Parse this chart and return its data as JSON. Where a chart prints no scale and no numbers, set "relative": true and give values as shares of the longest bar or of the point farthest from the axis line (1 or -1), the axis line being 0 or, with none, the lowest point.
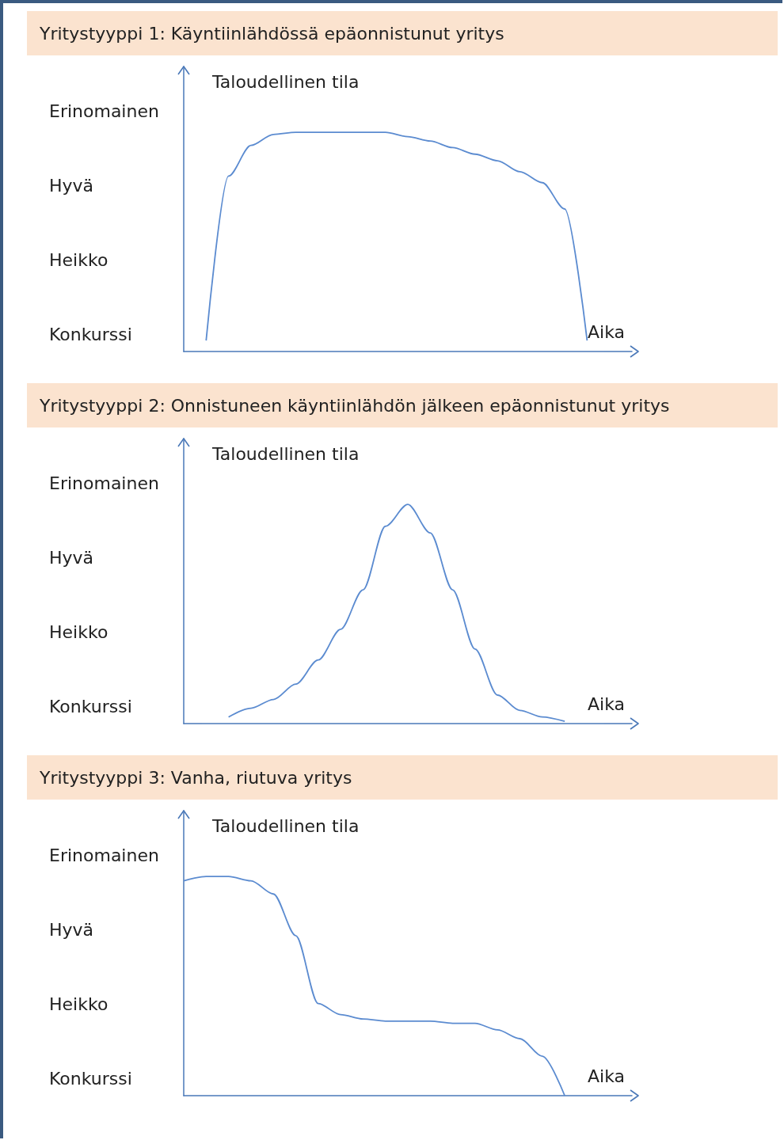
{
  "chart_data": [
    {
      "type": "line",
      "title": "Yritystyyppi 1: Käyntiinlähdössä epäonnistunut yritys",
      "xlabel": "Aika",
      "ylabel": "Taloudellinen tila",
      "color": "#5b8bd0",
      "marker": "none",
      "relative": true,
      "categories": [
        null,
        null,
        null,
        null,
        null,
        null,
        null,
        null,
        null,
        null,
        null,
        null,
        null,
        null,
        null,
        null,
        null,
        null,
        null,
        null,
        null
      ],
      "values": [
        null,
        0.05,
        0.8,
        0.94,
        0.99,
        1,
        1,
        1,
        1,
        1,
        0.98,
        0.96,
        0.93,
        0.9,
        0.87,
        0.82,
        0.77,
        0.65,
        0.05,
        null,
        null
      ],
      "annotations": [
        "Konkurssi",
        "Heikko",
        "Hyvä",
        "Erinomainen"
      ]
    },
    {
      "type": "line",
      "title": "Yritystyyppi  2: Onnistuneen käyntiinlähdön jälkeen epäonnistunut yritys",
      "xlabel": "Aika",
      "ylabel": "Taloudellinen tila",
      "color": "#5b8bd0",
      "marker": "none",
      "relative": true,
      "categories": [
        null,
        null,
        null,
        null,
        null,
        null,
        null,
        null,
        null,
        null,
        null,
        null,
        null,
        null,
        null,
        null,
        null,
        null,
        null,
        null,
        null
      ],
      "values": [
        null,
        null,
        0.03,
        0.07,
        0.11,
        0.18,
        0.29,
        0.43,
        0.61,
        0.9,
        1,
        0.87,
        0.61,
        0.34,
        0.13,
        0.06,
        0.03,
        0.01,
        null,
        null,
        null
      ],
      "annotations": [
        "Konkurssi",
        "Heikko",
        "Hyvä",
        "Erinomainen"
      ]
    },
    {
      "type": "line",
      "title": "Yritystyyppi  3: Vanha, riutuva yritys",
      "xlabel": "Aika",
      "ylabel": "Taloudellinen tila",
      "color": "#5b8bd0",
      "marker": "none",
      "relative": true,
      "categories": [
        null,
        null,
        null,
        null,
        null,
        null,
        null,
        null,
        null,
        null,
        null,
        null,
        null,
        null,
        null,
        null,
        null,
        null,
        null,
        null,
        null
      ],
      "values": [
        0.98,
        1,
        1,
        0.98,
        0.92,
        0.73,
        0.42,
        0.37,
        0.35,
        0.34,
        0.34,
        0.34,
        0.33,
        0.33,
        0.3,
        0.26,
        0.18,
        0,
        null,
        null,
        null
      ],
      "annotations": [
        "Konkurssi",
        "Heikko",
        "Hyvä",
        "Erinomainen"
      ]
    }
  ]
}
